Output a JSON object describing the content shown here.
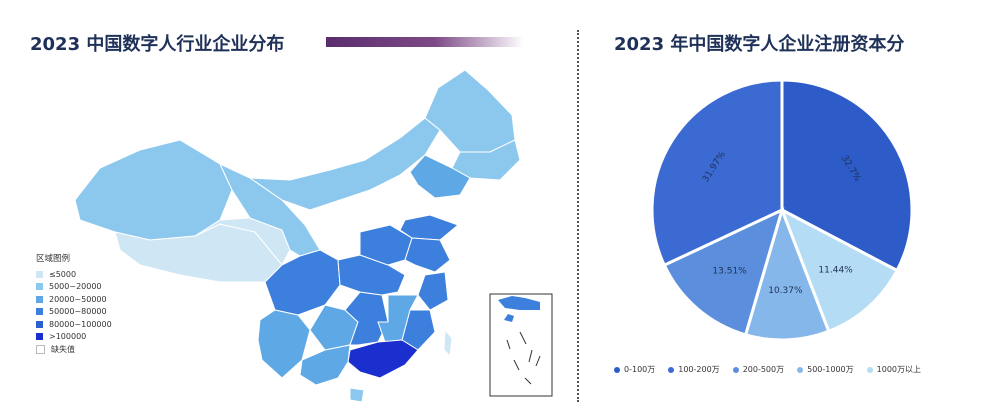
{
  "left_title": "2023 中国数字人行业企业分布",
  "right_title": "2023 年中国数字人企业注册资本分",
  "colors": {
    "title_bar_start": "#5a2d6e",
    "map_levels": [
      "#cfe7f5",
      "#8cc8ee",
      "#5ea8e6",
      "#3c7fdc",
      "#2b5fd0",
      "#1b2fcf"
    ],
    "missing": "#ffffff",
    "sea": "#dff0fa"
  },
  "map": {
    "legend_title": "区域图例",
    "legend": [
      {
        "label": "≤5000",
        "level": 0
      },
      {
        "label": "5000~20000",
        "level": 1
      },
      {
        "label": "20000~50000",
        "level": 2
      },
      {
        "label": "50000~80000",
        "level": 3
      },
      {
        "label": "80000~100000",
        "level": 4
      },
      {
        "label": ">100000",
        "level": 5
      },
      {
        "label": "缺失值",
        "level": -1
      }
    ],
    "regions": [
      {
        "region": "新疆",
        "level": 1
      },
      {
        "region": "西藏",
        "level": 0
      },
      {
        "region": "青海",
        "level": 0
      },
      {
        "region": "甘肃",
        "level": 1
      },
      {
        "region": "内蒙古",
        "level": 1
      },
      {
        "region": "黑龙江",
        "level": 1
      },
      {
        "region": "吉林",
        "level": 1
      },
      {
        "region": "辽宁",
        "level": 2
      },
      {
        "region": "四川",
        "level": 3
      },
      {
        "region": "云南",
        "level": 2
      },
      {
        "region": "贵州",
        "level": 2
      },
      {
        "region": "湖南",
        "level": 3
      },
      {
        "region": "湖北",
        "level": 3
      },
      {
        "region": "河南",
        "level": 3
      },
      {
        "region": "山东",
        "level": 3
      },
      {
        "region": "江苏",
        "level": 3
      },
      {
        "region": "浙江",
        "level": 3
      },
      {
        "region": "福建",
        "level": 3
      },
      {
        "region": "江西",
        "level": 2
      },
      {
        "region": "广东",
        "level": 5
      },
      {
        "region": "广西",
        "level": 2
      },
      {
        "region": "海南",
        "level": 1
      },
      {
        "region": "台湾",
        "level": 0
      }
    ]
  },
  "chart_data": {
    "type": "pie",
    "slices": [
      {
        "label": "0-100万",
        "value": 32.7,
        "value_label": "32.7%",
        "color": "#2d5cc9"
      },
      {
        "label": "100-200万",
        "value": 31.97,
        "value_label": "31.97%",
        "color": "#3b6bd2"
      },
      {
        "label": "200-500万",
        "value": 13.51,
        "value_label": "13.51%",
        "color": "#5b8fdd"
      },
      {
        "label": "500-1000万",
        "value": 10.37,
        "value_label": "10.37%",
        "color": "#86b7ea"
      },
      {
        "label": "1000万以上",
        "value": 11.44,
        "value_label": "11.44%",
        "color": "#b4dcf5"
      }
    ],
    "order_clockwise_from_top": [
      "0-100万",
      "1000万以上",
      "500-1000万",
      "200-500万",
      "100-200万"
    ],
    "legend_position": "bottom"
  }
}
